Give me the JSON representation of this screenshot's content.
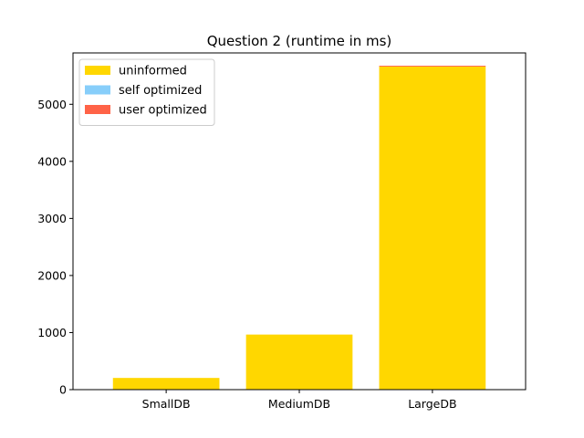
{
  "chart_data": {
    "type": "bar",
    "stacked": true,
    "title": "Question 2 (runtime in ms)",
    "xlabel": "",
    "ylabel": "",
    "categories": [
      "SmallDB",
      "MediumDB",
      "LargeDB"
    ],
    "ylim": [
      0,
      5900
    ],
    "yticks": [
      0,
      1000,
      2000,
      3000,
      4000,
      5000
    ],
    "grid": false,
    "legend_position": "top-left",
    "series": [
      {
        "name": "uninformed",
        "color": "#FFD700",
        "values": [
          205,
          965,
          5660
        ]
      },
      {
        "name": "self optimized",
        "color": "#87CEFA",
        "values": [
          0,
          0,
          0
        ]
      },
      {
        "name": "user optimized",
        "color": "#FF6347",
        "values": [
          0,
          0,
          15
        ]
      }
    ]
  }
}
